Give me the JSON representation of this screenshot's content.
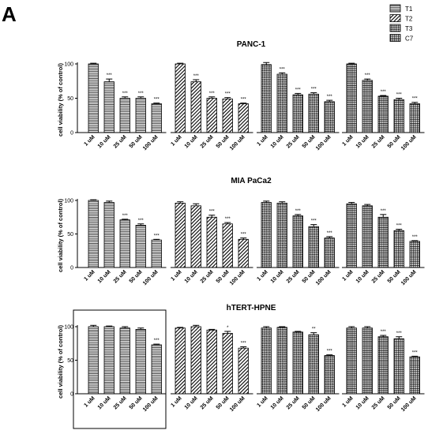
{
  "figure": {
    "panel_letter": "A"
  },
  "legend": [
    {
      "label": "T1",
      "pattern": "hlines"
    },
    {
      "label": "T2",
      "pattern": "diag"
    },
    {
      "label": "T3",
      "pattern": "check"
    },
    {
      "label": "C7",
      "pattern": "grid"
    }
  ],
  "chart_data": [
    {
      "type": "bar",
      "title": "PANC-1",
      "ylabel": "cell viability (% of control)",
      "ylim": [
        0,
        100
      ],
      "yticks": [
        0,
        50,
        100
      ],
      "categories": [
        "1 uM",
        "10 uM",
        "25 uM",
        "50 uM",
        "100 uM"
      ],
      "series": [
        {
          "name": "T1",
          "values": [
            100,
            74,
            50,
            50,
            42
          ],
          "errors": [
            1,
            4,
            2,
            2,
            1
          ],
          "significance": [
            "",
            "***",
            "***",
            "***",
            "***"
          ]
        },
        {
          "name": "T2",
          "values": [
            100,
            74,
            50,
            49,
            42
          ],
          "errors": [
            1,
            3,
            2,
            2,
            1
          ],
          "significance": [
            "",
            "***",
            "***",
            "***",
            "***"
          ]
        },
        {
          "name": "T3",
          "values": [
            99,
            85,
            55,
            56,
            45
          ],
          "errors": [
            3,
            2,
            2,
            2,
            2
          ],
          "significance": [
            "",
            "***",
            "***",
            "***",
            "***"
          ]
        },
        {
          "name": "C7",
          "values": [
            100,
            76,
            53,
            48,
            42
          ],
          "errors": [
            1,
            2,
            1,
            2,
            2
          ],
          "significance": [
            "",
            "***",
            "***",
            "***",
            "***"
          ]
        }
      ]
    },
    {
      "type": "bar",
      "title": "MIA PaCa2",
      "ylabel": "cell viability (% of control)",
      "ylim": [
        0,
        100
      ],
      "yticks": [
        0,
        50,
        100
      ],
      "categories": [
        "1 uM",
        "10 uM",
        "25 uM",
        "50 uM",
        "100 uM"
      ],
      "series": [
        {
          "name": "T1",
          "values": [
            100,
            97,
            71,
            63,
            41
          ],
          "errors": [
            1,
            2,
            1,
            2,
            1
          ],
          "significance": [
            "",
            "",
            "***",
            "***",
            "***"
          ]
        },
        {
          "name": "T2",
          "values": [
            96,
            92,
            75,
            65,
            42
          ],
          "errors": [
            2,
            3,
            3,
            2,
            2
          ],
          "significance": [
            "",
            "",
            "***",
            "***",
            "***"
          ]
        },
        {
          "name": "T3",
          "values": [
            97,
            96,
            77,
            61,
            44
          ],
          "errors": [
            2,
            2,
            2,
            3,
            2
          ],
          "significance": [
            "",
            "",
            "***",
            "***",
            "***"
          ]
        },
        {
          "name": "C7",
          "values": [
            95,
            92,
            75,
            55,
            39
          ],
          "errors": [
            2,
            2,
            4,
            2,
            1
          ],
          "significance": [
            "",
            "",
            "***",
            "***",
            "***"
          ]
        }
      ]
    },
    {
      "type": "bar",
      "title": "hTERT-HPNE",
      "ylabel": "cell viability (% of control)",
      "ylim": [
        0,
        100
      ],
      "yticks": [
        0,
        50,
        100
      ],
      "categories": [
        "1 uM",
        "10 uM",
        "25 uM",
        "50 uM",
        "100 uM"
      ],
      "series": [
        {
          "name": "T1",
          "values": [
            100,
            100,
            98,
            96,
            73
          ],
          "errors": [
            2,
            1,
            2,
            2,
            1
          ],
          "significance": [
            "",
            "",
            "",
            "",
            "***"
          ]
        },
        {
          "name": "T2",
          "values": [
            98,
            100,
            95,
            90,
            68
          ],
          "errors": [
            1,
            2,
            1,
            3,
            2
          ],
          "significance": [
            "",
            "",
            "",
            "*",
            "***"
          ]
        },
        {
          "name": "T3",
          "values": [
            98,
            99,
            92,
            88,
            57
          ],
          "errors": [
            2,
            1,
            1,
            3,
            1
          ],
          "significance": [
            "",
            "",
            "",
            "**",
            "***"
          ]
        },
        {
          "name": "C7",
          "values": [
            98,
            98,
            85,
            82,
            55
          ],
          "errors": [
            2,
            2,
            2,
            3,
            1
          ],
          "significance": [
            "",
            "",
            "***",
            "***",
            "***"
          ]
        }
      ]
    }
  ]
}
